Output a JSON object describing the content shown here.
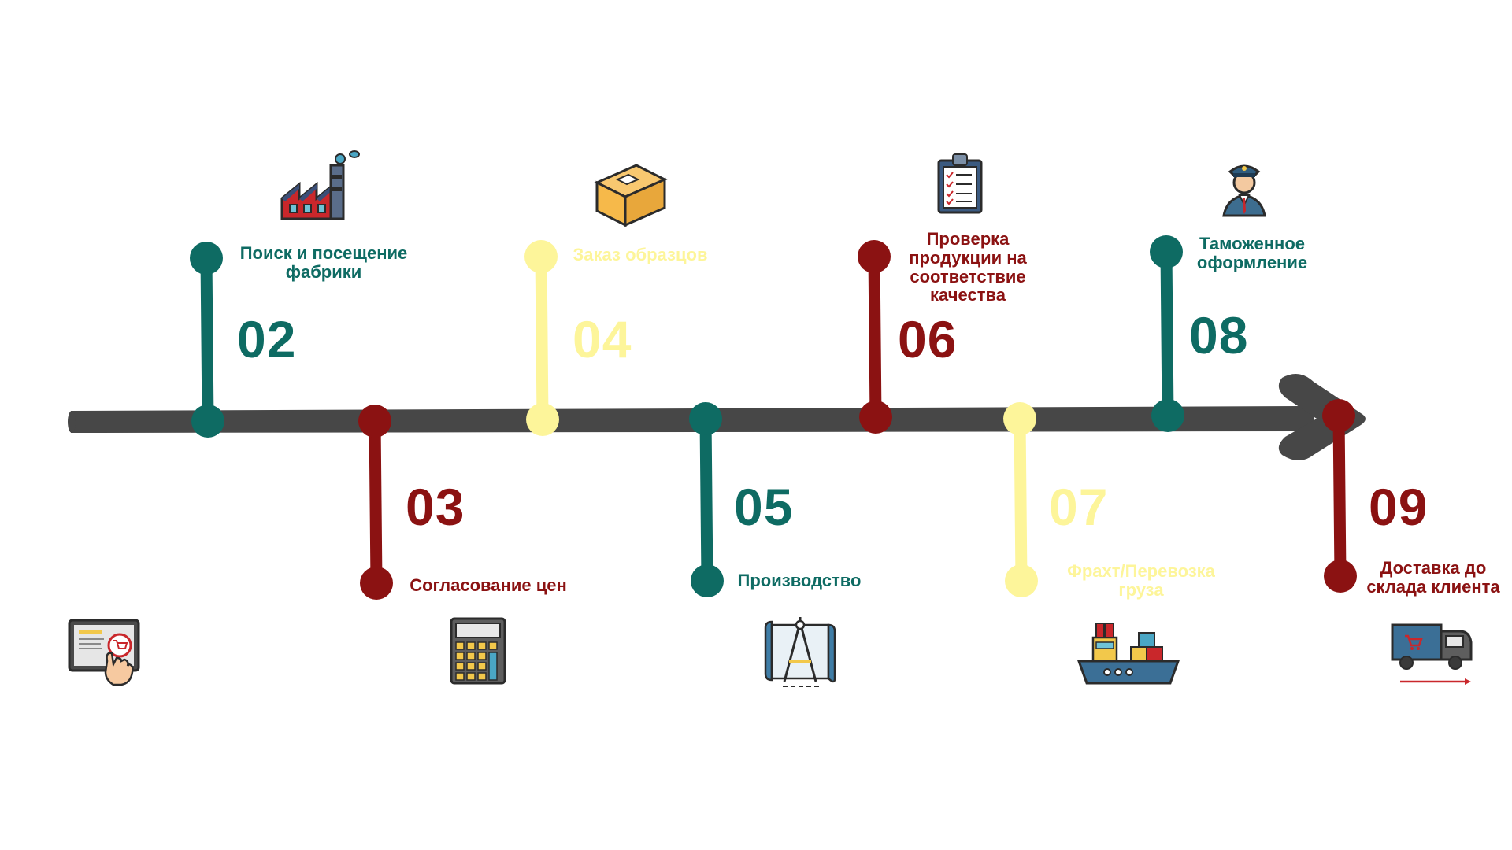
{
  "colors": {
    "teal": "#0e6b63",
    "red": "#8b1212",
    "yellow": "#fdf59a",
    "arrow": "#474747",
    "background": "#ffffff"
  },
  "steps": [
    {
      "number": "02",
      "label": "Поиск и посещение\nфабрики",
      "color": "teal",
      "icon": "factory-icon"
    },
    {
      "number": "03",
      "label": "Согласование цен",
      "color": "red",
      "icon": "calculator-icon"
    },
    {
      "number": "04",
      "label": "Заказ образцов",
      "color": "yellow",
      "icon": "box-icon"
    },
    {
      "number": "05",
      "label": "Производство",
      "color": "teal",
      "icon": "blueprint-compass-icon"
    },
    {
      "number": "06",
      "label": "Проверка\nпродукции на\nсоответствие\nкачества",
      "color": "red",
      "icon": "clipboard-checklist-icon"
    },
    {
      "number": "07",
      "label": "Фрахт/Перевозка\nгруза",
      "color": "yellow",
      "icon": "cargo-ship-icon"
    },
    {
      "number": "08",
      "label": "Таможенное\nоформление",
      "color": "teal",
      "icon": "customs-officer-icon"
    },
    {
      "number": "09",
      "label": "Доставка до\nсклада клиента",
      "color": "red",
      "icon": "delivery-truck-icon"
    }
  ],
  "start_icon": "online-shop-tablet-icon"
}
